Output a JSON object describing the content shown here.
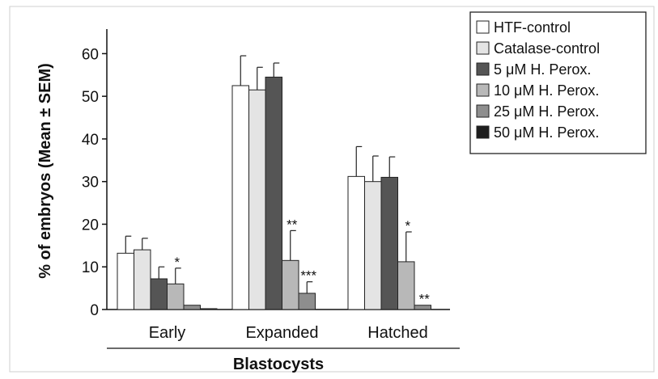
{
  "chart_data": {
    "type": "bar",
    "categories": [
      "Early",
      "Expanded",
      "Hatched"
    ],
    "xlabel": "Blastocysts",
    "ylabel": "% of embryos (Mean ± SEM)",
    "ylim": [
      0,
      65
    ],
    "yticks": [
      0,
      10,
      20,
      30,
      40,
      50,
      60
    ],
    "grid": false,
    "legend_position": "top-right",
    "series": [
      {
        "name": "HTF-control",
        "color": "#ffffff",
        "values": [
          13.2,
          52.5,
          31.2
        ],
        "errors": [
          4.0,
          7.0,
          7.0
        ],
        "sig": [
          "",
          "",
          ""
        ]
      },
      {
        "name": "Catalase-control",
        "color": "#e4e4e4",
        "values": [
          14.0,
          51.5,
          30.0
        ],
        "errors": [
          2.7,
          5.3,
          6.0
        ],
        "sig": [
          "",
          "",
          ""
        ]
      },
      {
        "name": "5 μM H. Perox.",
        "color": "#555555",
        "values": [
          7.2,
          54.5,
          31.0
        ],
        "errors": [
          2.8,
          3.3,
          4.8
        ],
        "sig": [
          "",
          "",
          ""
        ]
      },
      {
        "name": "10 μM H. Perox.",
        "color": "#b8b8b8",
        "values": [
          6.0,
          11.5,
          11.2
        ],
        "errors": [
          3.7,
          7.0,
          7.0
        ],
        "sig": [
          "*",
          "**",
          "*"
        ]
      },
      {
        "name": "25 μM H. Perox.",
        "color": "#8e8e8e",
        "values": [
          1.0,
          3.8,
          1.0
        ],
        "errors": [
          0,
          2.7,
          0
        ],
        "sig": [
          "",
          "***",
          "**"
        ]
      },
      {
        "name": "50 μM H. Perox.",
        "color": "#1e1e1e",
        "values": [
          0.2,
          0,
          0
        ],
        "errors": [
          0,
          0,
          0
        ],
        "sig": [
          "",
          "",
          ""
        ]
      }
    ]
  }
}
